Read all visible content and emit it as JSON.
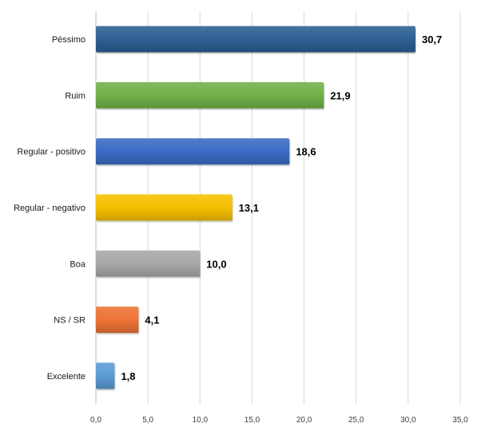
{
  "chart_data": {
    "type": "bar",
    "orientation": "horizontal",
    "title": "",
    "xlabel": "",
    "ylabel": "",
    "categories": [
      "Péssimo",
      "Ruim",
      "Regular - positivo",
      "Regular - negativo",
      "Boa",
      "NS / SR",
      "Excelente"
    ],
    "values": [
      30.7,
      21.9,
      18.6,
      13.1,
      10.0,
      4.1,
      1.8
    ],
    "value_labels": [
      "30,7",
      "21,9",
      "18,6",
      "13,1",
      "10,0",
      "4,1",
      "1,8"
    ],
    "xlim": [
      0,
      35
    ],
    "x_ticks": [
      0,
      5,
      10,
      15,
      20,
      25,
      30,
      35
    ],
    "x_tick_labels": [
      "0,0",
      "5,0",
      "10,0",
      "15,0",
      "20,0",
      "25,0",
      "30,0",
      "35,0"
    ],
    "grid": true,
    "legend": "none",
    "colors": [
      "#2e5f93",
      "#71b24a",
      "#3b6cc4",
      "#f5c000",
      "#a8a8a8",
      "#ed7336",
      "#5b9bd5"
    ]
  }
}
